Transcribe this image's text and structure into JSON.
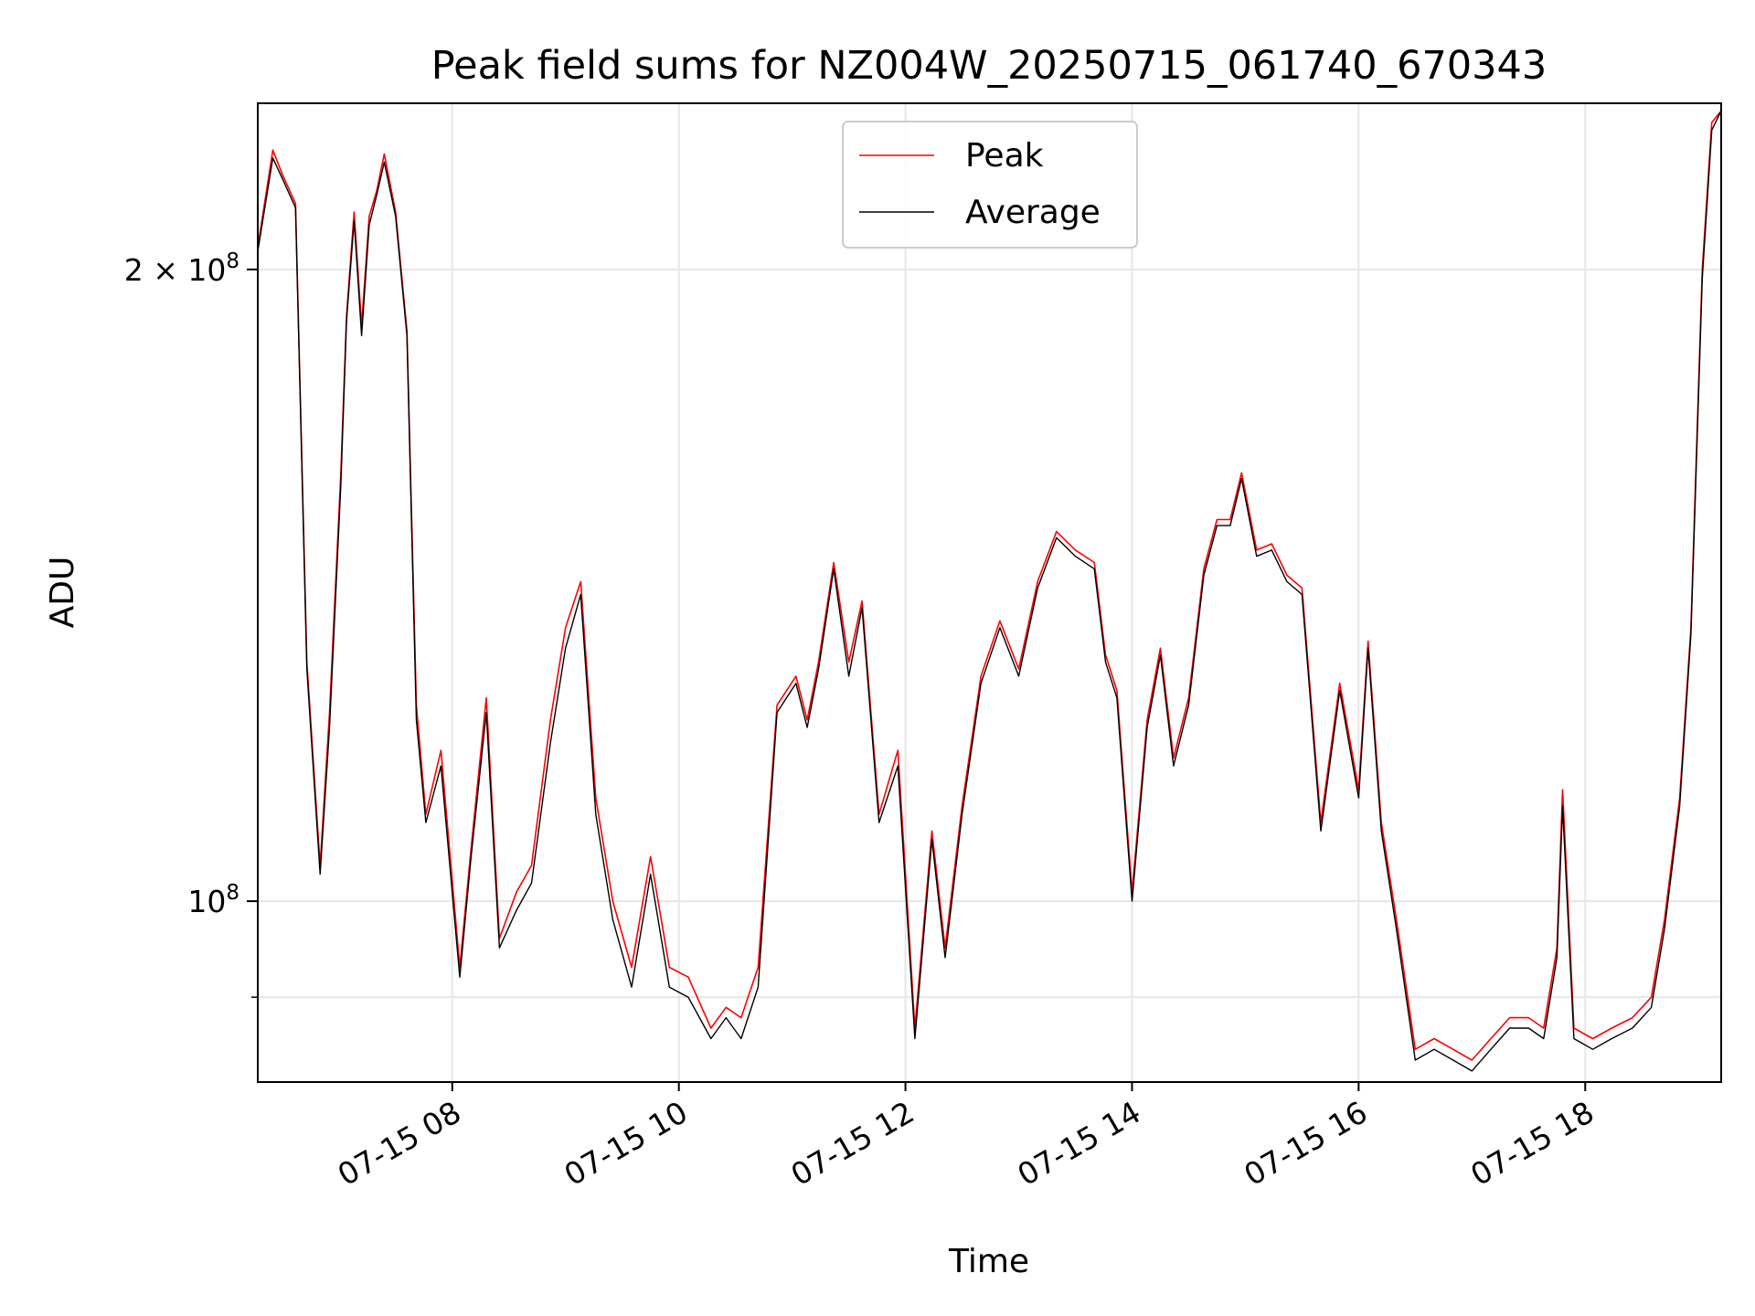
{
  "chart_data": {
    "type": "line",
    "title": "Peak field sums for NZ004W_20250715_061740_670343",
    "xlabel": "Time",
    "ylabel": "ADU",
    "yscale": "log",
    "xlim": [
      "2025-07-15 06:17",
      "2025-07-15 19:12"
    ],
    "ylim": [
      82000000,
      240000000
    ],
    "grid": true,
    "legend_position": "upper center",
    "x_ticks": [
      "07-15 08",
      "07-15 10",
      "07-15 12",
      "07-15 14",
      "07-15 16",
      "07-15 18"
    ],
    "y_major_ticks": [
      {
        "value": 100000000,
        "label": "10",
        "exponent": "8",
        "prefix": ""
      },
      {
        "value": 200000000,
        "label": "10",
        "exponent": "8",
        "prefix": "2 × "
      }
    ],
    "y_minor_gridlines": [
      90000000
    ],
    "series": [
      {
        "name": "Peak",
        "color": "#ff0000",
        "x": [
          "2025-07-15 06:17",
          "2025-07-15 06:25",
          "2025-07-15 06:30",
          "2025-07-15 06:37",
          "2025-07-15 06:43",
          "2025-07-15 06:50",
          "2025-07-15 06:55",
          "2025-07-15 07:01",
          "2025-07-15 07:04",
          "2025-07-15 07:08",
          "2025-07-15 07:12",
          "2025-07-15 07:16",
          "2025-07-15 07:20",
          "2025-07-15 07:24",
          "2025-07-15 07:30",
          "2025-07-15 07:36",
          "2025-07-15 07:41",
          "2025-07-15 07:46",
          "2025-07-15 07:54",
          "2025-07-15 08:04",
          "2025-07-15 08:10",
          "2025-07-15 08:18",
          "2025-07-15 08:25",
          "2025-07-15 08:34",
          "2025-07-15 08:42",
          "2025-07-15 08:52",
          "2025-07-15 09:00",
          "2025-07-15 09:08",
          "2025-07-15 09:16",
          "2025-07-15 09:25",
          "2025-07-15 09:35",
          "2025-07-15 09:45",
          "2025-07-15 09:55",
          "2025-07-15 10:05",
          "2025-07-15 10:17",
          "2025-07-15 10:25",
          "2025-07-15 10:33",
          "2025-07-15 10:42",
          "2025-07-15 10:52",
          "2025-07-15 11:02",
          "2025-07-15 11:08",
          "2025-07-15 11:14",
          "2025-07-15 11:22",
          "2025-07-15 11:30",
          "2025-07-15 11:37",
          "2025-07-15 11:46",
          "2025-07-15 11:56",
          "2025-07-15 12:05",
          "2025-07-15 12:14",
          "2025-07-15 12:21",
          "2025-07-15 12:30",
          "2025-07-15 12:40",
          "2025-07-15 12:50",
          "2025-07-15 13:00",
          "2025-07-15 13:10",
          "2025-07-15 13:20",
          "2025-07-15 13:30",
          "2025-07-15 13:40",
          "2025-07-15 13:46",
          "2025-07-15 13:52",
          "2025-07-15 14:00",
          "2025-07-15 14:08",
          "2025-07-15 14:15",
          "2025-07-15 14:22",
          "2025-07-15 14:30",
          "2025-07-15 14:38",
          "2025-07-15 14:45",
          "2025-07-15 14:52",
          "2025-07-15 14:58",
          "2025-07-15 15:06",
          "2025-07-15 15:14",
          "2025-07-15 15:22",
          "2025-07-15 15:30",
          "2025-07-15 15:40",
          "2025-07-15 15:50",
          "2025-07-15 16:00",
          "2025-07-15 16:05",
          "2025-07-15 16:12",
          "2025-07-15 16:20",
          "2025-07-15 16:30",
          "2025-07-15 16:40",
          "2025-07-15 16:50",
          "2025-07-15 17:00",
          "2025-07-15 17:10",
          "2025-07-15 17:20",
          "2025-07-15 17:30",
          "2025-07-15 17:38",
          "2025-07-15 17:45",
          "2025-07-15 17:48",
          "2025-07-15 17:54",
          "2025-07-15 18:04",
          "2025-07-15 18:14",
          "2025-07-15 18:25",
          "2025-07-15 18:35",
          "2025-07-15 18:42",
          "2025-07-15 18:50",
          "2025-07-15 18:56",
          "2025-07-15 19:02",
          "2025-07-15 19:07",
          "2025-07-15 19:12"
        ],
        "y": [
          205000000,
          228000000,
          222000000,
          215000000,
          130000000,
          104000000,
          123000000,
          160000000,
          190000000,
          213000000,
          188000000,
          212000000,
          218000000,
          227000000,
          213000000,
          187000000,
          124000000,
          110000000,
          118000000,
          93000000,
          106000000,
          125000000,
          96000000,
          101000000,
          104000000,
          122000000,
          135000000,
          142000000,
          112000000,
          100000000,
          93000000,
          105000000,
          93000000,
          92000000,
          87000000,
          89000000,
          88000000,
          93000000,
          124000000,
          128000000,
          122000000,
          130000000,
          145000000,
          130000000,
          139000000,
          110000000,
          118000000,
          87000000,
          108000000,
          95000000,
          111000000,
          128000000,
          136000000,
          129000000,
          142000000,
          150000000,
          147000000,
          145000000,
          131000000,
          126000000,
          101000000,
          122000000,
          132000000,
          117000000,
          125000000,
          144000000,
          152000000,
          152000000,
          160000000,
          147000000,
          148000000,
          143000000,
          141000000,
          109000000,
          127000000,
          113000000,
          133000000,
          109000000,
          98000000,
          85000000,
          86000000,
          85000000,
          84000000,
          86000000,
          88000000,
          88000000,
          87000000,
          95000000,
          113000000,
          87000000,
          86000000,
          87000000,
          88000000,
          90000000,
          98000000,
          112000000,
          135000000,
          200000000,
          235000000,
          238000000
        ]
      },
      {
        "name": "Average",
        "color": "#000000",
        "x": [
          "2025-07-15 06:17",
          "2025-07-15 06:25",
          "2025-07-15 06:30",
          "2025-07-15 06:37",
          "2025-07-15 06:43",
          "2025-07-15 06:50",
          "2025-07-15 06:55",
          "2025-07-15 07:01",
          "2025-07-15 07:04",
          "2025-07-15 07:08",
          "2025-07-15 07:12",
          "2025-07-15 07:16",
          "2025-07-15 07:20",
          "2025-07-15 07:24",
          "2025-07-15 07:30",
          "2025-07-15 07:36",
          "2025-07-15 07:41",
          "2025-07-15 07:46",
          "2025-07-15 07:54",
          "2025-07-15 08:04",
          "2025-07-15 08:10",
          "2025-07-15 08:18",
          "2025-07-15 08:25",
          "2025-07-15 08:34",
          "2025-07-15 08:42",
          "2025-07-15 08:52",
          "2025-07-15 09:00",
          "2025-07-15 09:08",
          "2025-07-15 09:16",
          "2025-07-15 09:25",
          "2025-07-15 09:35",
          "2025-07-15 09:45",
          "2025-07-15 09:55",
          "2025-07-15 10:05",
          "2025-07-15 10:17",
          "2025-07-15 10:25",
          "2025-07-15 10:33",
          "2025-07-15 10:42",
          "2025-07-15 10:52",
          "2025-07-15 11:02",
          "2025-07-15 11:08",
          "2025-07-15 11:14",
          "2025-07-15 11:22",
          "2025-07-15 11:30",
          "2025-07-15 11:37",
          "2025-07-15 11:46",
          "2025-07-15 11:56",
          "2025-07-15 12:05",
          "2025-07-15 12:14",
          "2025-07-15 12:21",
          "2025-07-15 12:30",
          "2025-07-15 12:40",
          "2025-07-15 12:50",
          "2025-07-15 13:00",
          "2025-07-15 13:10",
          "2025-07-15 13:20",
          "2025-07-15 13:30",
          "2025-07-15 13:40",
          "2025-07-15 13:46",
          "2025-07-15 13:52",
          "2025-07-15 14:00",
          "2025-07-15 14:08",
          "2025-07-15 14:15",
          "2025-07-15 14:22",
          "2025-07-15 14:30",
          "2025-07-15 14:38",
          "2025-07-15 14:45",
          "2025-07-15 14:52",
          "2025-07-15 14:58",
          "2025-07-15 15:06",
          "2025-07-15 15:14",
          "2025-07-15 15:22",
          "2025-07-15 15:30",
          "2025-07-15 15:40",
          "2025-07-15 15:50",
          "2025-07-15 16:00",
          "2025-07-15 16:05",
          "2025-07-15 16:12",
          "2025-07-15 16:20",
          "2025-07-15 16:30",
          "2025-07-15 16:40",
          "2025-07-15 16:50",
          "2025-07-15 17:00",
          "2025-07-15 17:10",
          "2025-07-15 17:20",
          "2025-07-15 17:30",
          "2025-07-15 17:38",
          "2025-07-15 17:45",
          "2025-07-15 17:48",
          "2025-07-15 17:54",
          "2025-07-15 18:04",
          "2025-07-15 18:14",
          "2025-07-15 18:25",
          "2025-07-15 18:35",
          "2025-07-15 18:42",
          "2025-07-15 18:50",
          "2025-07-15 18:56",
          "2025-07-15 19:02",
          "2025-07-15 19:07",
          "2025-07-15 19:12"
        ],
        "y": [
          204000000,
          226000000,
          221000000,
          214000000,
          129000000,
          103000000,
          121000000,
          158000000,
          189000000,
          211000000,
          186000000,
          210000000,
          217000000,
          225000000,
          212000000,
          186000000,
          122000000,
          109000000,
          116000000,
          92000000,
          105000000,
          123000000,
          95000000,
          99000000,
          102000000,
          119000000,
          132000000,
          140000000,
          110000000,
          98000000,
          91000000,
          103000000,
          91000000,
          90000000,
          86000000,
          88000000,
          86000000,
          91000000,
          123000000,
          127000000,
          121000000,
          129000000,
          144000000,
          128000000,
          138000000,
          109000000,
          116000000,
          86000000,
          107000000,
          94000000,
          110000000,
          127000000,
          135000000,
          128000000,
          141000000,
          149000000,
          146000000,
          144000000,
          130000000,
          125000000,
          100000000,
          121000000,
          131000000,
          116000000,
          124000000,
          143000000,
          151000000,
          151000000,
          159000000,
          146000000,
          147000000,
          142000000,
          140000000,
          108000000,
          126000000,
          112000000,
          132000000,
          108000000,
          97000000,
          84000000,
          85000000,
          84000000,
          83000000,
          85000000,
          87000000,
          87000000,
          86000000,
          94000000,
          111000000,
          86000000,
          85000000,
          86000000,
          87000000,
          89000000,
          97000000,
          111000000,
          134000000,
          198000000,
          233000000,
          238000000
        ]
      }
    ]
  }
}
